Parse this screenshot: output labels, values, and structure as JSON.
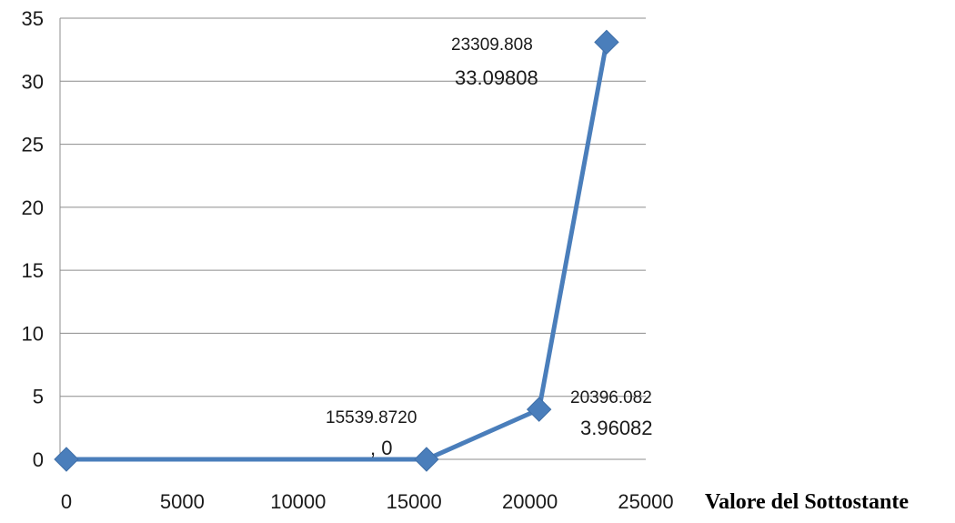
{
  "chart_data": {
    "type": "line",
    "title": "",
    "xlabel": "Valore del Sottostante",
    "ylabel": "",
    "xlim": [
      0,
      25000
    ],
    "ylim": [
      0,
      35
    ],
    "x_ticks": [
      "0",
      "5000",
      "10000",
      "15000",
      "20000",
      "25000"
    ],
    "y_ticks": [
      "0",
      "5",
      "10",
      "15",
      "20",
      "25",
      "30",
      "35"
    ],
    "grid": "horizontal",
    "color": "#4a7ebb",
    "series": [
      {
        "x": [
          0,
          15539.872,
          20396.082,
          23309.808
        ],
        "y": [
          0,
          0,
          3.96082,
          33.09808
        ]
      }
    ],
    "annotations": [
      {
        "x_text": "15539.8720",
        "y_text": ", 0"
      },
      {
        "x_text": "20396.082",
        "y_text": "3.96082"
      },
      {
        "x_text": "23309.808",
        "y_text": "33.09808"
      }
    ]
  }
}
